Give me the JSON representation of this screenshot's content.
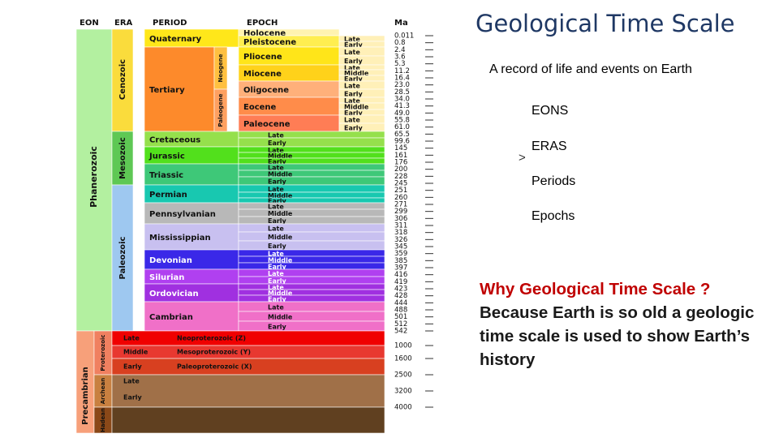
{
  "slide": {
    "title": "Geological Time Scale",
    "subtitle": "A record of life and events on Earth",
    "list": [
      "EONS",
      "ERAS",
      "Periods",
      "Epochs"
    ],
    "arrow_glyph": ">",
    "question": "Why Geological Time Scale ?",
    "answer": "Because Earth is so old a geologic time scale is used to show Earth’s history"
  },
  "table": {
    "headers": [
      "EON",
      "ERA",
      "PERIOD",
      "EPOCH",
      "Ma"
    ],
    "ma_values": [
      "0.011",
      "0.8",
      "2.4",
      "3.6",
      "5.3",
      "11.2",
      "16.4",
      "23.0",
      "28.5",
      "34.0",
      "41.3",
      "49.0",
      "55.8",
      "61.0",
      "65.5",
      "99.6",
      "145",
      "161",
      "176",
      "200",
      "228",
      "245",
      "251",
      "260",
      "271",
      "299",
      "306",
      "311",
      "318",
      "326",
      "345",
      "359",
      "385",
      "397",
      "416",
      "419",
      "423",
      "428",
      "444",
      "488",
      "501",
      "512",
      "542",
      "1000",
      "1600",
      "2500",
      "3200",
      "4000"
    ],
    "eons": [
      "Phanerozoic",
      "Precambrian"
    ],
    "eras": [
      "Cenozoic",
      "Mesozoic",
      "Paleozoic"
    ],
    "precambrian_eons": [
      "Proterozoic",
      "Archean",
      "Hadean"
    ],
    "subperiods": [
      "Neogene",
      "Paleogene"
    ],
    "periods": [
      "Quaternary",
      "Tertiary",
      "Cretaceous",
      "Jurassic",
      "Triassic",
      "Permian",
      "Pennsylvanian",
      "Mississippian",
      "Devonian",
      "Silurian",
      "Ordovician",
      "Cambrian"
    ],
    "epochs": [
      "Holocene",
      "Pleistocene",
      "Pliocene",
      "Miocene",
      "Oligocene",
      "Eocene",
      "Paleocene"
    ],
    "proterozoic_eras": [
      "Neoproterozoic (Z)",
      "Mesoproterozoic (Y)",
      "Paleoproterozoic (X)"
    ],
    "precambrian_ages": [
      "Late",
      "Middle",
      "Early"
    ],
    "subdivision_labels": [
      "Late",
      "Early",
      "Middle"
    ],
    "colors": {
      "phanerozoic": "#b3f0a0",
      "cenozoic": "#fadc3c",
      "quaternary": "#ffe71a",
      "tertiary": "#fd8a2b",
      "holocene": "#fff3b0",
      "pleistocene": "#ffee50",
      "pliocene": "#ffe519",
      "miocene": "#ffd21a",
      "oligocene": "#ffb07a",
      "eocene": "#ff8c4a",
      "paleocene": "#ff7d55",
      "mesozoic": "#5ec854",
      "cretaceous": "#95e04c",
      "jurassic": "#52e01c",
      "triassic": "#3ec878",
      "paleozoic": "#9ec8f0",
      "permian": "#18c8b0",
      "pennsylvanian": "#b8b8b8",
      "mississippian": "#c8c0f0",
      "devonian": "#3a28e8",
      "silurian": "#b040f0",
      "ordovician": "#a030e0",
      "cambrian": "#f070c8",
      "precambrian": "#f7a07a",
      "proterozoic": "#f08060",
      "archean": "#c88040",
      "hadean": "#8a4818",
      "neoproterozoic": "#f00000",
      "mesoproterozoic": "#e83830",
      "paleoproterozoic": "#d84020",
      "precambrian_late": "#a07048",
      "precambrian_early": "#604020",
      "title": "#1f3864",
      "question": "#c00000"
    }
  }
}
